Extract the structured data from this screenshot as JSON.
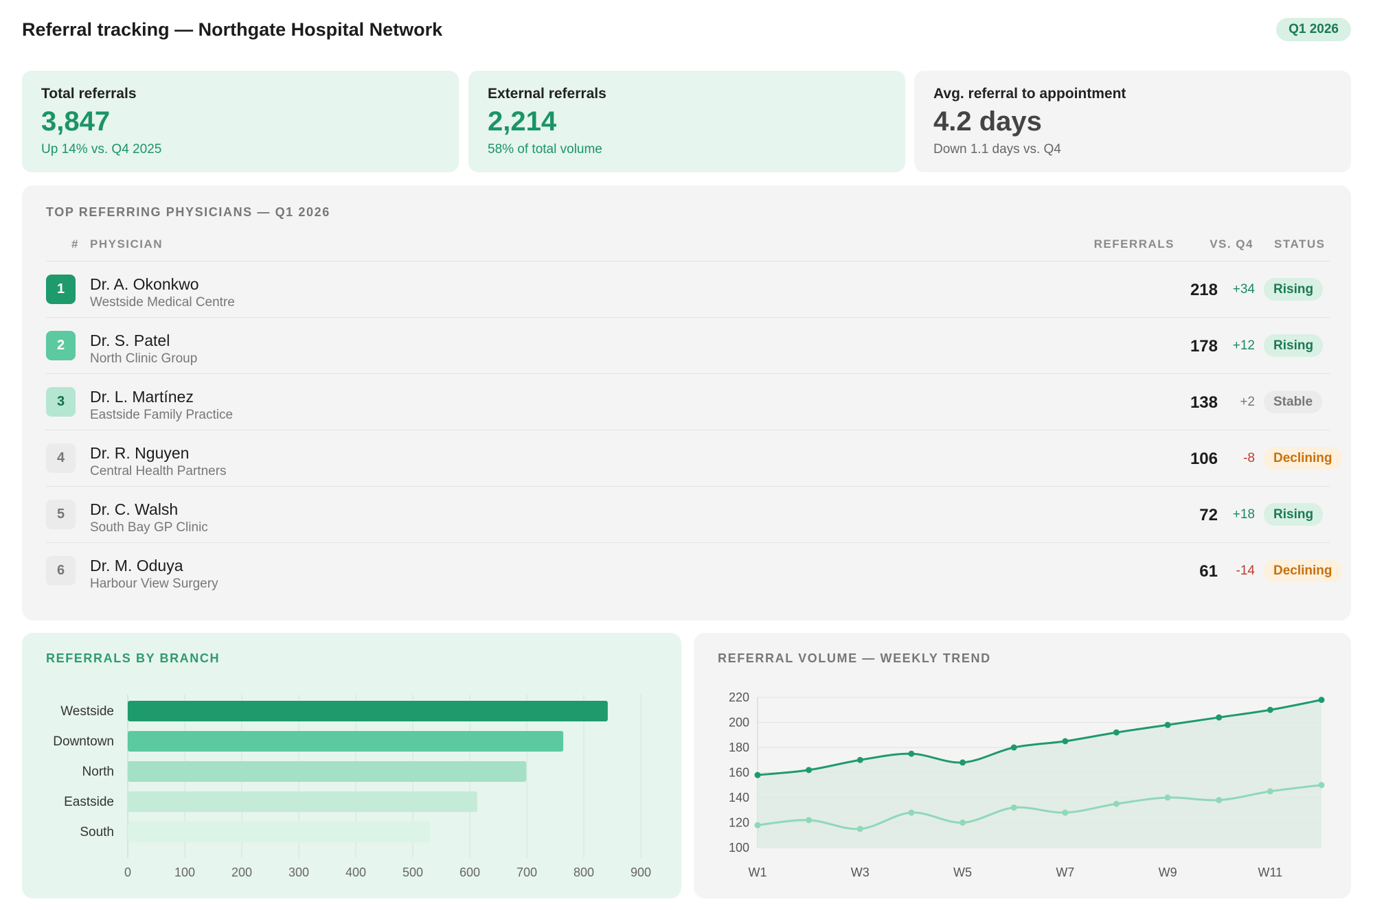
{
  "header": {
    "title": "Referral tracking — Northgate Hospital Network",
    "period": "Q1 2026"
  },
  "kpis": [
    {
      "label": "Total referrals",
      "value": "3,847",
      "sub": "Up 14% vs. Q4 2025"
    },
    {
      "label": "External referrals",
      "value": "2,214",
      "sub": "58% of total volume"
    },
    {
      "label": "Avg. referral to appointment",
      "value": "4.2 days",
      "sub": "Down 1.1 days vs. Q4"
    }
  ],
  "physicians": {
    "title": "TOP REFERRING PHYSICIANS — Q1 2026",
    "columns": {
      "rank": "#",
      "physician": "PHYSICIAN",
      "referrals": "REFERRALS",
      "vs": "VS. Q4",
      "status": "STATUS"
    },
    "rows": [
      {
        "rank": "1",
        "name": "Dr. A. Okonkwo",
        "org": "Westside Medical Centre",
        "referrals": "218",
        "delta": "+34",
        "status": "Rising"
      },
      {
        "rank": "2",
        "name": "Dr. S. Patel",
        "org": "North Clinic Group",
        "referrals": "178",
        "delta": "+12",
        "status": "Rising"
      },
      {
        "rank": "3",
        "name": "Dr. L. Martínez",
        "org": "Eastside Family Practice",
        "referrals": "138",
        "delta": "+2",
        "status": "Stable"
      },
      {
        "rank": "4",
        "name": "Dr. R. Nguyen",
        "org": "Central Health Partners",
        "referrals": "106",
        "delta": "-8",
        "status": "Declining"
      },
      {
        "rank": "5",
        "name": "Dr. C. Walsh",
        "org": "South Bay GP Clinic",
        "referrals": "72",
        "delta": "+18",
        "status": "Rising"
      },
      {
        "rank": "6",
        "name": "Dr. M. Oduya",
        "org": "Harbour View Surgery",
        "referrals": "61",
        "delta": "-14",
        "status": "Declining"
      }
    ]
  },
  "chart_data": [
    {
      "type": "bar",
      "orientation": "horizontal",
      "title": "REFERRALS BY BRANCH",
      "categories": [
        "Westside",
        "Downtown",
        "North",
        "Eastside",
        "South"
      ],
      "values": [
        842,
        764,
        699,
        613,
        530
      ],
      "xlim": [
        0,
        900
      ],
      "xticks": [
        0,
        100,
        200,
        300,
        400,
        500,
        600,
        700,
        800,
        900
      ],
      "colors": [
        "#1e9a6c",
        "#5cc9a1",
        "#a3e0c6",
        "#c4ebd8",
        "#dcf3e7"
      ],
      "grid": true
    },
    {
      "type": "line",
      "title": "REFERRAL VOLUME — WEEKLY TREND",
      "x": [
        "W1",
        "W2",
        "W3",
        "W4",
        "W5",
        "W6",
        "W7",
        "W8",
        "W9",
        "W10",
        "W11",
        "W12"
      ],
      "xtick_labels": [
        "W1",
        "W3",
        "W5",
        "W7",
        "W9",
        "W11"
      ],
      "series": [
        {
          "values": [
            158,
            162,
            170,
            175,
            168,
            180,
            185,
            192,
            198,
            204,
            210,
            218
          ],
          "color": "#1e9a6c",
          "fill": true
        },
        {
          "values": [
            118,
            122,
            115,
            128,
            120,
            132,
            128,
            135,
            140,
            138,
            145,
            150
          ],
          "color": "#8fd8b9",
          "fill": false
        }
      ],
      "ylim": [
        100,
        220
      ],
      "yticks": [
        100,
        120,
        140,
        160,
        180,
        200,
        220
      ],
      "grid": true
    }
  ]
}
